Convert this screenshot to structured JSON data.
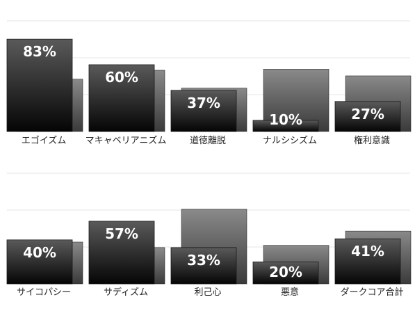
{
  "chart_data": [
    {
      "type": "bar",
      "categories": [
        "エゴイズム",
        "マキャベリアニズム",
        "道徳離脱",
        "ナルシシズム",
        "権利意識"
      ],
      "series": [
        {
          "values": [
            83,
            60,
            37,
            10,
            27
          ]
        },
        {
          "values": [
            47,
            55,
            39,
            56,
            50
          ]
        }
      ],
      "data_labels": [
        "83%",
        "60%",
        "37%",
        "10%",
        "27%"
      ],
      "ylim": [
        0,
        100
      ],
      "grid": true,
      "colors": {
        "front_top": "#5a5a5a",
        "front_bottom": "#050505",
        "back_top": "#8a8a8a",
        "back_bottom": "#3a3a3a",
        "grid": "#e6e6e6"
      }
    },
    {
      "type": "bar",
      "categories": [
        "サイコパシー",
        "サディズム",
        "利己心",
        "悪意",
        "ダークコア合計"
      ],
      "series": [
        {
          "values": [
            40,
            57,
            33,
            20,
            41
          ]
        },
        {
          "values": [
            38,
            33,
            68,
            35,
            48
          ]
        }
      ],
      "data_labels": [
        "40%",
        "57%",
        "33%",
        "20%",
        "41%"
      ],
      "ylim": [
        0,
        100
      ],
      "grid": true,
      "colors": {
        "front_top": "#5a5a5a",
        "front_bottom": "#050505",
        "back_top": "#8a8a8a",
        "back_bottom": "#3a3a3a",
        "grid": "#e6e6e6"
      }
    }
  ]
}
